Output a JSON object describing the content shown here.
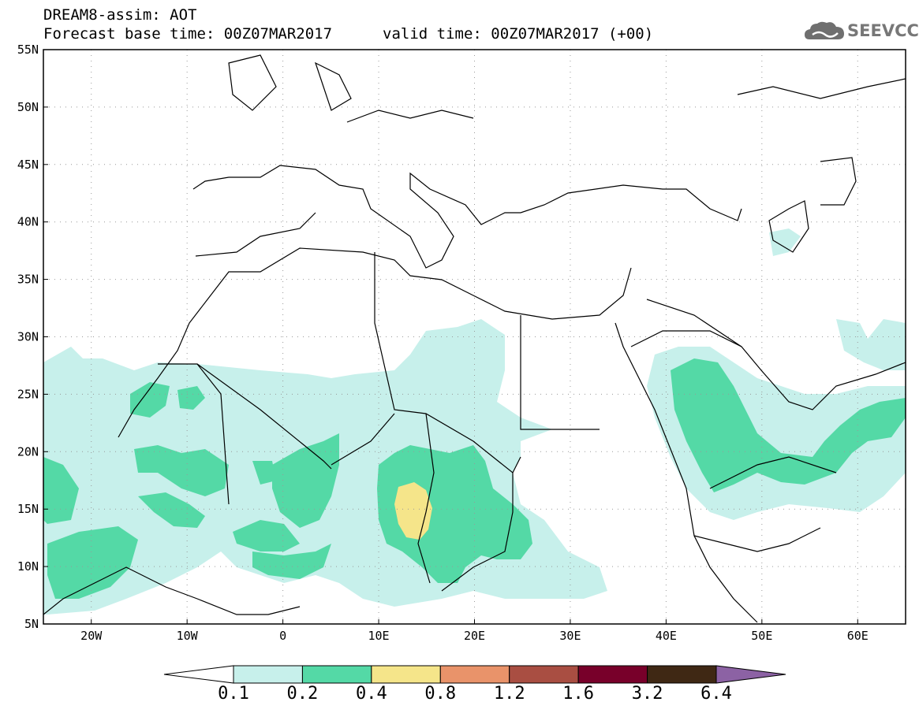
{
  "header": {
    "title": "DREAM8-assim: AOT",
    "base_time": "Forecast base time: 00Z07MAR2017",
    "valid_time": "valid time: 00Z07MAR2017 (+00)"
  },
  "logo": {
    "text": "SEEVCCC",
    "icon": "cloud-icon"
  },
  "map": {
    "lon_range": [
      -25,
      65
    ],
    "lat_range": [
      5,
      55
    ],
    "lat_ticks": [
      "5N",
      "10N",
      "15N",
      "20N",
      "25N",
      "30N",
      "35N",
      "40N",
      "45N",
      "50N",
      "55N"
    ],
    "lon_ticks": [
      "20W",
      "10W",
      "0",
      "10E",
      "20E",
      "30E",
      "40E",
      "50E",
      "60E"
    ]
  },
  "colorbar": {
    "labels": [
      "0.1",
      "0.2",
      "0.4",
      "0.8",
      "1.2",
      "1.6",
      "3.2",
      "6.4"
    ],
    "colors": [
      "#ffffff",
      "#c7f0eb",
      "#54d9a6",
      "#f5e58a",
      "#e9936a",
      "#a94e42",
      "#78002a",
      "#3f2814",
      "#8c62a4"
    ]
  }
}
